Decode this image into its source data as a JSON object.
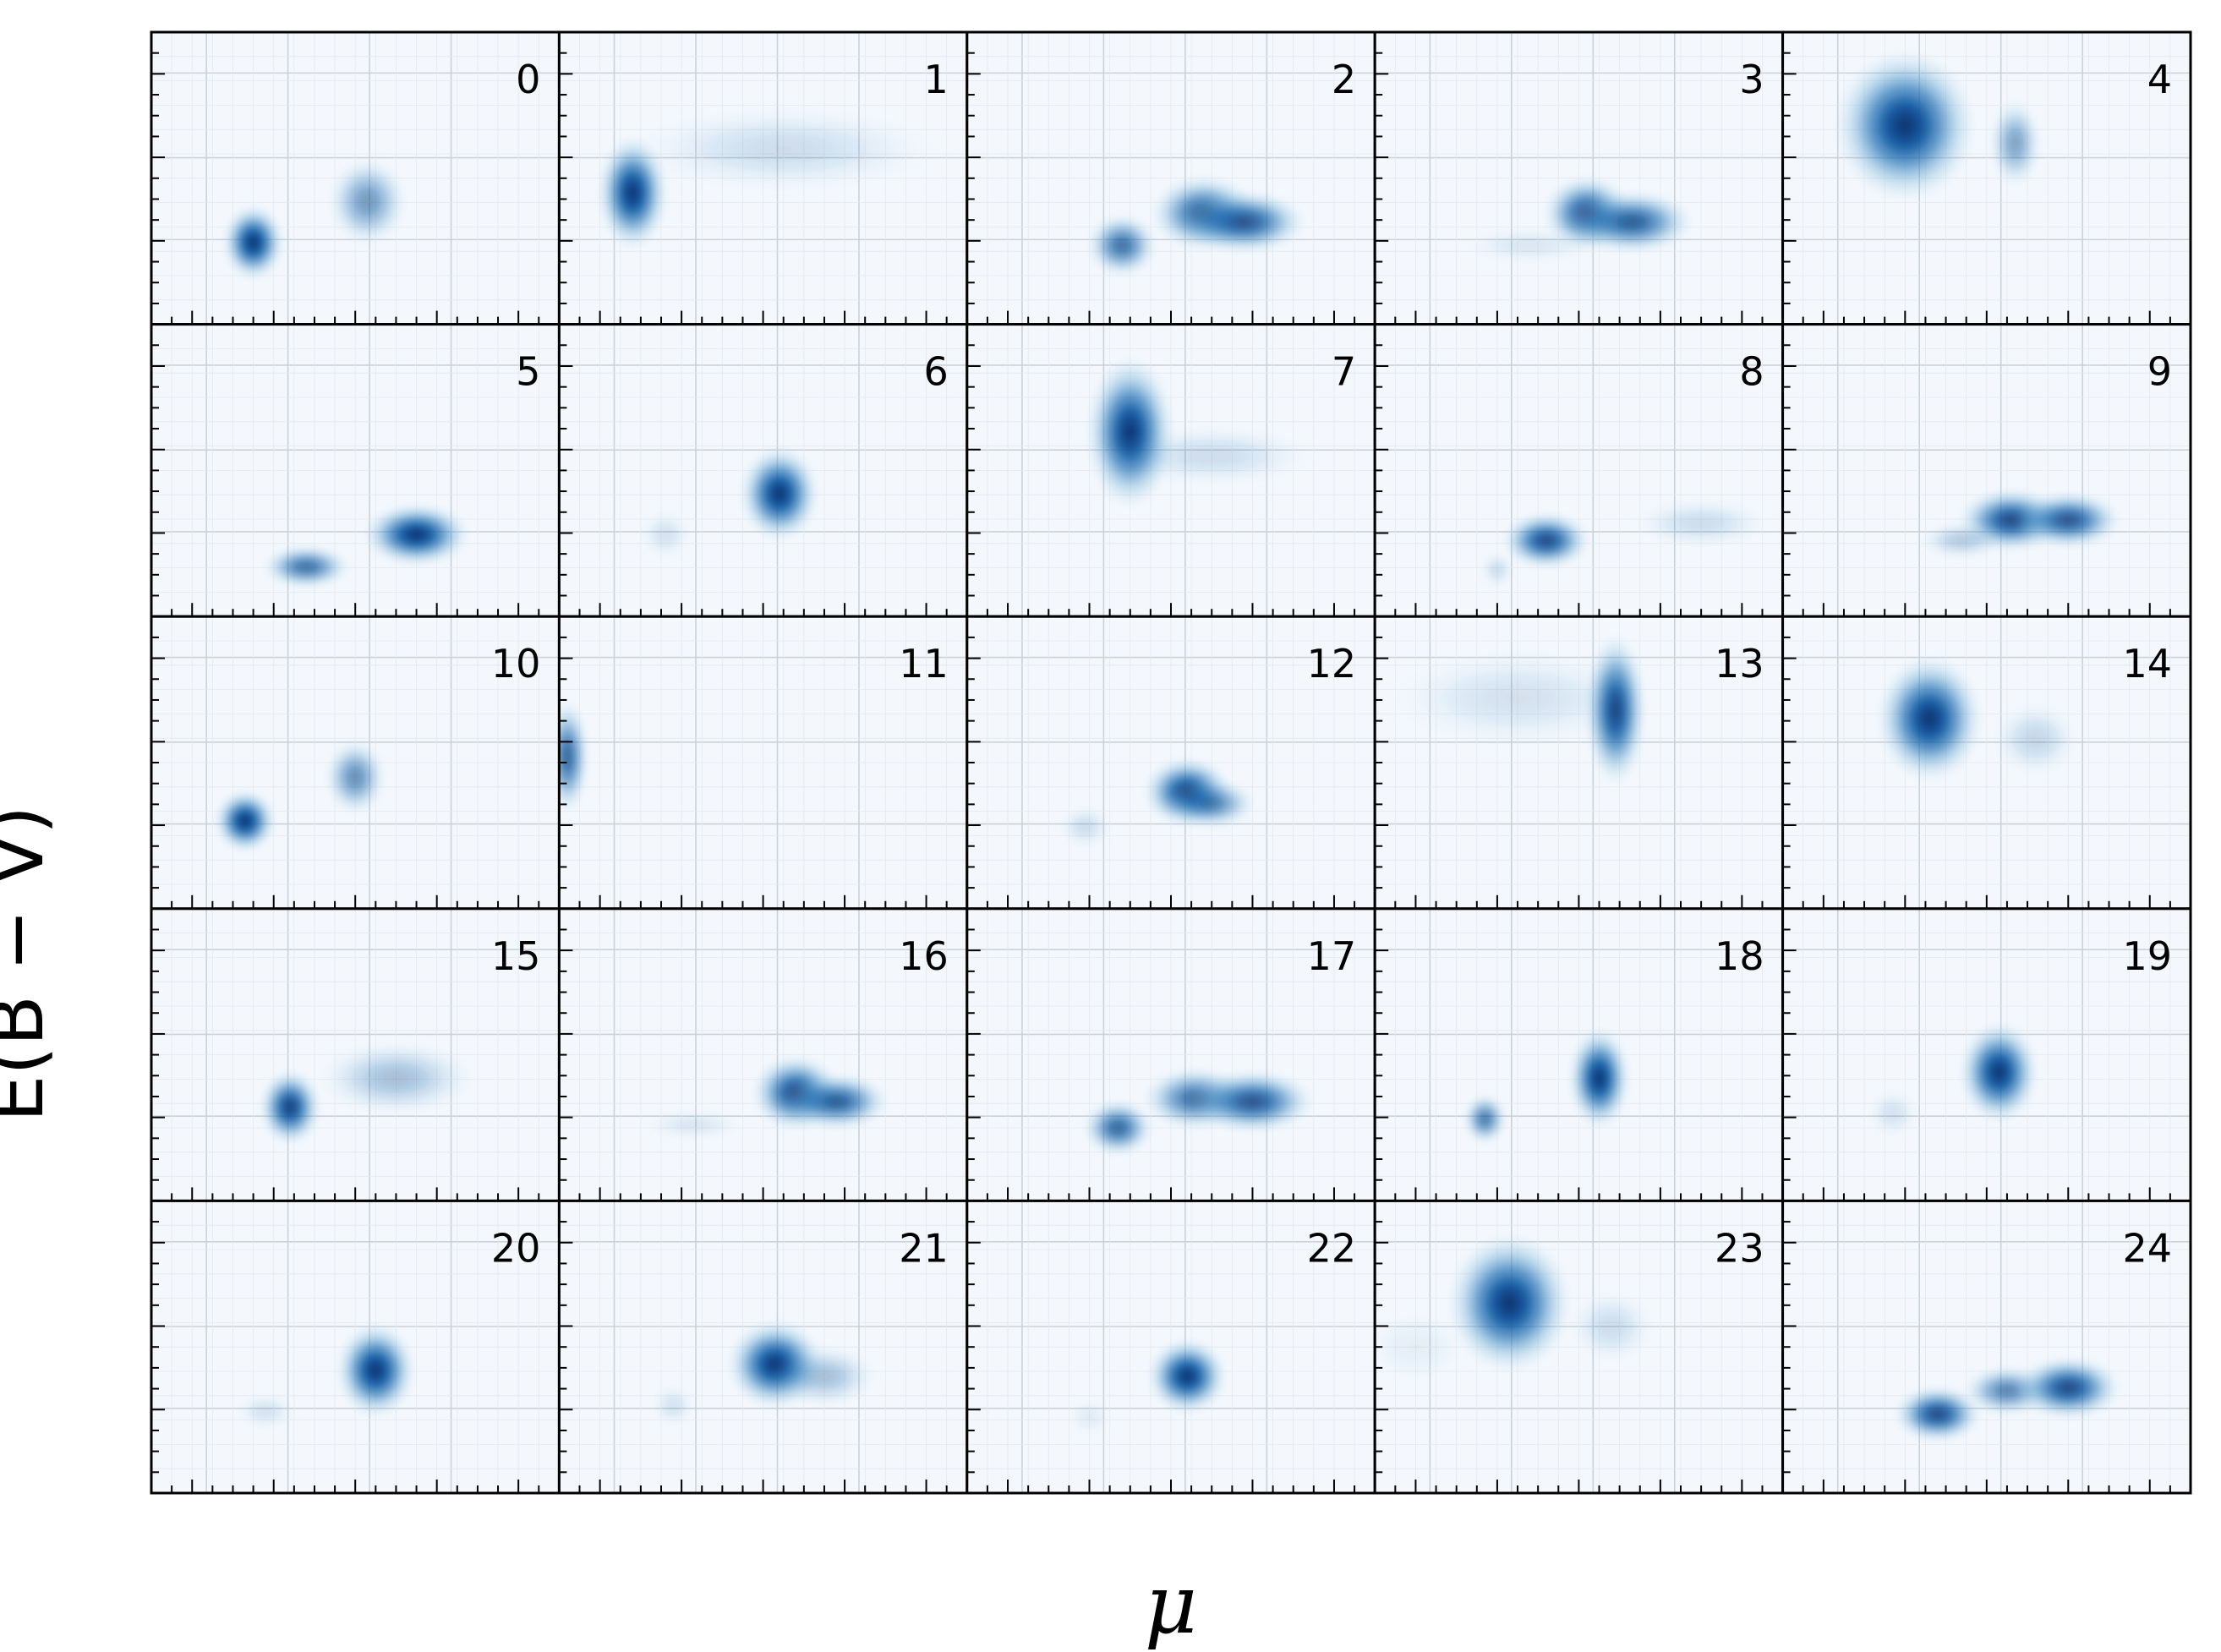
{
  "chart_data": {
    "type": "heatmap",
    "layout": "5x5 grid of density panels",
    "xlabel": "μ",
    "ylabel": "E(B − V)",
    "colormap": "Blues",
    "grid": true,
    "tick_labels_shown": false,
    "panels": [
      {
        "label": "0",
        "blobs": [
          {
            "x": 0.25,
            "y": 0.28,
            "sx": 0.035,
            "sy": 0.06,
            "a": 1.0
          },
          {
            "x": 0.53,
            "y": 0.42,
            "sx": 0.045,
            "sy": 0.07,
            "a": 0.5
          }
        ]
      },
      {
        "label": "1",
        "blobs": [
          {
            "x": 0.18,
            "y": 0.45,
            "sx": 0.04,
            "sy": 0.09,
            "a": 1.0
          },
          {
            "x": 0.55,
            "y": 0.6,
            "sx": 0.18,
            "sy": 0.07,
            "a": 0.15
          }
        ]
      },
      {
        "label": "2",
        "blobs": [
          {
            "x": 0.38,
            "y": 0.27,
            "sx": 0.04,
            "sy": 0.05,
            "a": 0.7
          },
          {
            "x": 0.58,
            "y": 0.38,
            "sx": 0.06,
            "sy": 0.06,
            "a": 0.8
          },
          {
            "x": 0.68,
            "y": 0.35,
            "sx": 0.07,
            "sy": 0.05,
            "a": 0.85
          }
        ]
      },
      {
        "label": "3",
        "blobs": [
          {
            "x": 0.52,
            "y": 0.38,
            "sx": 0.05,
            "sy": 0.06,
            "a": 0.85
          },
          {
            "x": 0.63,
            "y": 0.35,
            "sx": 0.07,
            "sy": 0.05,
            "a": 0.8
          },
          {
            "x": 0.38,
            "y": 0.27,
            "sx": 0.08,
            "sy": 0.03,
            "a": 0.1
          }
        ]
      },
      {
        "label": "4",
        "blobs": [
          {
            "x": 0.3,
            "y": 0.68,
            "sx": 0.08,
            "sy": 0.12,
            "a": 1.0
          },
          {
            "x": 0.57,
            "y": 0.62,
            "sx": 0.03,
            "sy": 0.07,
            "a": 0.45
          }
        ]
      },
      {
        "label": "5",
        "blobs": [
          {
            "x": 0.38,
            "y": 0.17,
            "sx": 0.05,
            "sy": 0.035,
            "a": 0.7
          },
          {
            "x": 0.65,
            "y": 0.28,
            "sx": 0.06,
            "sy": 0.05,
            "a": 1.0
          }
        ]
      },
      {
        "label": "6",
        "blobs": [
          {
            "x": 0.54,
            "y": 0.42,
            "sx": 0.045,
            "sy": 0.075,
            "a": 1.0
          },
          {
            "x": 0.26,
            "y": 0.28,
            "sx": 0.03,
            "sy": 0.04,
            "a": 0.12
          }
        ]
      },
      {
        "label": "7",
        "blobs": [
          {
            "x": 0.4,
            "y": 0.63,
            "sx": 0.05,
            "sy": 0.12,
            "a": 1.0
          },
          {
            "x": 0.6,
            "y": 0.55,
            "sx": 0.12,
            "sy": 0.05,
            "a": 0.15
          }
        ]
      },
      {
        "label": "8",
        "blobs": [
          {
            "x": 0.42,
            "y": 0.26,
            "sx": 0.05,
            "sy": 0.045,
            "a": 0.9
          },
          {
            "x": 0.3,
            "y": 0.16,
            "sx": 0.02,
            "sy": 0.03,
            "a": 0.15
          },
          {
            "x": 0.8,
            "y": 0.32,
            "sx": 0.08,
            "sy": 0.04,
            "a": 0.15
          }
        ]
      },
      {
        "label": "9",
        "blobs": [
          {
            "x": 0.56,
            "y": 0.33,
            "sx": 0.06,
            "sy": 0.05,
            "a": 0.9
          },
          {
            "x": 0.7,
            "y": 0.33,
            "sx": 0.06,
            "sy": 0.045,
            "a": 0.85
          },
          {
            "x": 0.44,
            "y": 0.26,
            "sx": 0.05,
            "sy": 0.03,
            "a": 0.25
          }
        ]
      },
      {
        "label": "10",
        "blobs": [
          {
            "x": 0.23,
            "y": 0.3,
            "sx": 0.035,
            "sy": 0.05,
            "a": 1.0
          },
          {
            "x": 0.5,
            "y": 0.45,
            "sx": 0.035,
            "sy": 0.06,
            "a": 0.55
          }
        ]
      },
      {
        "label": "11",
        "blobs": [
          {
            "x": 0.02,
            "y": 0.52,
            "sx": 0.025,
            "sy": 0.09,
            "a": 0.75
          }
        ]
      },
      {
        "label": "12",
        "blobs": [
          {
            "x": 0.54,
            "y": 0.4,
            "sx": 0.05,
            "sy": 0.055,
            "a": 0.95
          },
          {
            "x": 0.6,
            "y": 0.36,
            "sx": 0.05,
            "sy": 0.04,
            "a": 0.6
          },
          {
            "x": 0.29,
            "y": 0.28,
            "sx": 0.03,
            "sy": 0.035,
            "a": 0.15
          }
        ]
      },
      {
        "label": "13",
        "blobs": [
          {
            "x": 0.59,
            "y": 0.68,
            "sx": 0.035,
            "sy": 0.12,
            "a": 0.95
          },
          {
            "x": 0.35,
            "y": 0.72,
            "sx": 0.15,
            "sy": 0.08,
            "a": 0.12
          }
        ]
      },
      {
        "label": "14",
        "blobs": [
          {
            "x": 0.36,
            "y": 0.65,
            "sx": 0.06,
            "sy": 0.1,
            "a": 1.0
          },
          {
            "x": 0.62,
            "y": 0.58,
            "sx": 0.05,
            "sy": 0.06,
            "a": 0.18
          }
        ]
      },
      {
        "label": "15",
        "blobs": [
          {
            "x": 0.34,
            "y": 0.32,
            "sx": 0.035,
            "sy": 0.06,
            "a": 0.95
          },
          {
            "x": 0.6,
            "y": 0.42,
            "sx": 0.09,
            "sy": 0.06,
            "a": 0.3
          }
        ]
      },
      {
        "label": "16",
        "blobs": [
          {
            "x": 0.58,
            "y": 0.37,
            "sx": 0.05,
            "sy": 0.06,
            "a": 0.9
          },
          {
            "x": 0.68,
            "y": 0.34,
            "sx": 0.06,
            "sy": 0.045,
            "a": 0.8
          },
          {
            "x": 0.33,
            "y": 0.26,
            "sx": 0.06,
            "sy": 0.025,
            "a": 0.1
          }
        ]
      },
      {
        "label": "17",
        "blobs": [
          {
            "x": 0.37,
            "y": 0.25,
            "sx": 0.04,
            "sy": 0.045,
            "a": 0.75
          },
          {
            "x": 0.56,
            "y": 0.35,
            "sx": 0.06,
            "sy": 0.05,
            "a": 0.7
          },
          {
            "x": 0.7,
            "y": 0.34,
            "sx": 0.07,
            "sy": 0.05,
            "a": 0.85
          }
        ]
      },
      {
        "label": "18",
        "blobs": [
          {
            "x": 0.55,
            "y": 0.42,
            "sx": 0.035,
            "sy": 0.08,
            "a": 1.0
          },
          {
            "x": 0.27,
            "y": 0.28,
            "sx": 0.025,
            "sy": 0.04,
            "a": 0.65
          }
        ]
      },
      {
        "label": "19",
        "blobs": [
          {
            "x": 0.53,
            "y": 0.44,
            "sx": 0.045,
            "sy": 0.08,
            "a": 1.0
          },
          {
            "x": 0.27,
            "y": 0.3,
            "sx": 0.03,
            "sy": 0.04,
            "a": 0.12
          }
        ]
      },
      {
        "label": "20",
        "blobs": [
          {
            "x": 0.55,
            "y": 0.42,
            "sx": 0.045,
            "sy": 0.075,
            "a": 1.0
          },
          {
            "x": 0.28,
            "y": 0.28,
            "sx": 0.035,
            "sy": 0.03,
            "a": 0.12
          }
        ]
      },
      {
        "label": "21",
        "blobs": [
          {
            "x": 0.53,
            "y": 0.44,
            "sx": 0.055,
            "sy": 0.07,
            "a": 1.0
          },
          {
            "x": 0.65,
            "y": 0.4,
            "sx": 0.06,
            "sy": 0.05,
            "a": 0.3
          },
          {
            "x": 0.28,
            "y": 0.3,
            "sx": 0.025,
            "sy": 0.035,
            "a": 0.12
          }
        ]
      },
      {
        "label": "22",
        "blobs": [
          {
            "x": 0.54,
            "y": 0.4,
            "sx": 0.045,
            "sy": 0.06,
            "a": 1.0
          },
          {
            "x": 0.3,
            "y": 0.26,
            "sx": 0.025,
            "sy": 0.03,
            "a": 0.08
          }
        ]
      },
      {
        "label": "23",
        "blobs": [
          {
            "x": 0.33,
            "y": 0.65,
            "sx": 0.07,
            "sy": 0.11,
            "a": 1.0
          },
          {
            "x": 0.58,
            "y": 0.57,
            "sx": 0.05,
            "sy": 0.06,
            "a": 0.15
          },
          {
            "x": 0.1,
            "y": 0.5,
            "sx": 0.06,
            "sy": 0.06,
            "a": 0.06
          }
        ]
      },
      {
        "label": "24",
        "blobs": [
          {
            "x": 0.38,
            "y": 0.27,
            "sx": 0.05,
            "sy": 0.045,
            "a": 0.9
          },
          {
            "x": 0.55,
            "y": 0.35,
            "sx": 0.05,
            "sy": 0.04,
            "a": 0.6
          },
          {
            "x": 0.7,
            "y": 0.36,
            "sx": 0.06,
            "sy": 0.05,
            "a": 0.9
          }
        ]
      }
    ]
  }
}
